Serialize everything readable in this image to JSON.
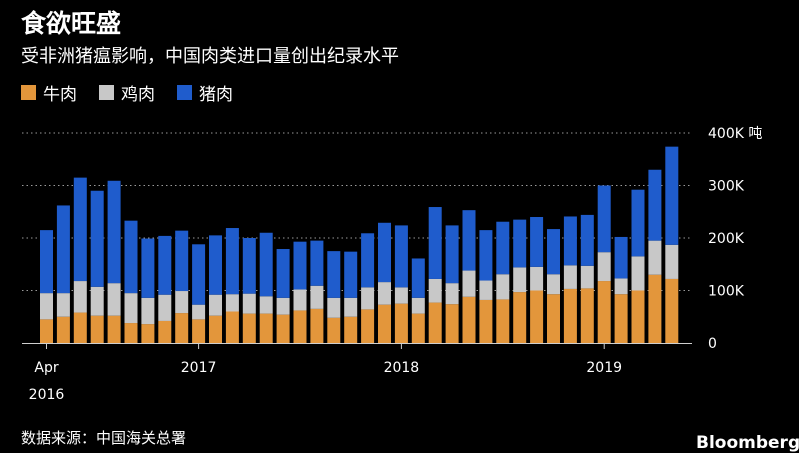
{
  "title": "食欲旺盛",
  "subtitle": "受非洲猪瘟影响，中国肉类进口量创出纪录水平",
  "source": "数据来源：中国海关总署",
  "brand": "Bloomberg",
  "colors": {
    "beef": "#e3963b",
    "chicken": "#c8c8c8",
    "pork": "#1f5ccc",
    "grid": "#9a9a9a"
  },
  "legend": [
    {
      "label": "牛肉",
      "color": "#e3963b"
    },
    {
      "label": "鸡肉",
      "color": "#c8c8c8"
    },
    {
      "label": "猪肉",
      "color": "#1f5ccc"
    }
  ],
  "chart_data": {
    "type": "bar",
    "stacked": true,
    "unit": "吨",
    "ylim": [
      0,
      400000
    ],
    "yticks": [
      {
        "value": 0,
        "label": "0"
      },
      {
        "value": 100000,
        "label": "100K"
      },
      {
        "value": 200000,
        "label": "200K"
      },
      {
        "value": 300000,
        "label": "300K"
      },
      {
        "value": 400000,
        "label": "400K 吨"
      }
    ],
    "xticks": [
      {
        "index": 0,
        "label": "Apr",
        "sublabel": "2016"
      },
      {
        "index": 9,
        "label": "2017"
      },
      {
        "index": 21,
        "label": "2018"
      },
      {
        "index": 33,
        "label": "2019"
      }
    ],
    "grid": true,
    "legend_position": "top-left",
    "categories": [
      "2016-04",
      "2016-05",
      "2016-06",
      "2016-07",
      "2016-08",
      "2016-09",
      "2016-10",
      "2016-11",
      "2016-12",
      "2017-01",
      "2017-02",
      "2017-03",
      "2017-04",
      "2017-05",
      "2017-06",
      "2017-07",
      "2017-08",
      "2017-09",
      "2017-10",
      "2017-11",
      "2017-12",
      "2018-01",
      "2018-02",
      "2018-03",
      "2018-04",
      "2018-05",
      "2018-06",
      "2018-07",
      "2018-08",
      "2018-09",
      "2018-10",
      "2018-11",
      "2018-12",
      "2019-01",
      "2019-02",
      "2019-03",
      "2019-04",
      "2019-05",
      "2019-06"
    ],
    "series": [
      {
        "name": "牛肉",
        "values": [
          45000,
          50000,
          58000,
          52000,
          52000,
          38000,
          36000,
          42000,
          57000,
          45000,
          52000,
          60000,
          56000,
          56000,
          54000,
          62000,
          65000,
          48000,
          50000,
          64000,
          73000,
          75000,
          56000,
          77000,
          74000,
          88000,
          82000,
          83000,
          97000,
          100000,
          93000,
          103000,
          104000,
          118000,
          93000,
          100000,
          130000,
          122000,
          0
        ]
      },
      {
        "name": "鸡肉",
        "values": [
          50000,
          45000,
          60000,
          55000,
          62000,
          57000,
          50000,
          50000,
          42000,
          28000,
          40000,
          33000,
          38000,
          33000,
          32000,
          40000,
          44000,
          38000,
          36000,
          42000,
          43000,
          31000,
          30000,
          45000,
          40000,
          50000,
          37000,
          48000,
          47000,
          45000,
          38000,
          45000,
          43000,
          55000,
          30000,
          65000,
          65000,
          65000,
          0
        ]
      },
      {
        "name": "猪肉",
        "values": [
          120000,
          167000,
          197000,
          183000,
          195000,
          138000,
          113000,
          112000,
          115000,
          115000,
          113000,
          126000,
          106000,
          121000,
          93000,
          91000,
          86000,
          89000,
          88000,
          103000,
          113000,
          118000,
          75000,
          137000,
          110000,
          115000,
          96000,
          100000,
          91000,
          95000,
          86000,
          93000,
          97000,
          127000,
          79000,
          127000,
          135000,
          187000,
          0
        ]
      }
    ]
  }
}
